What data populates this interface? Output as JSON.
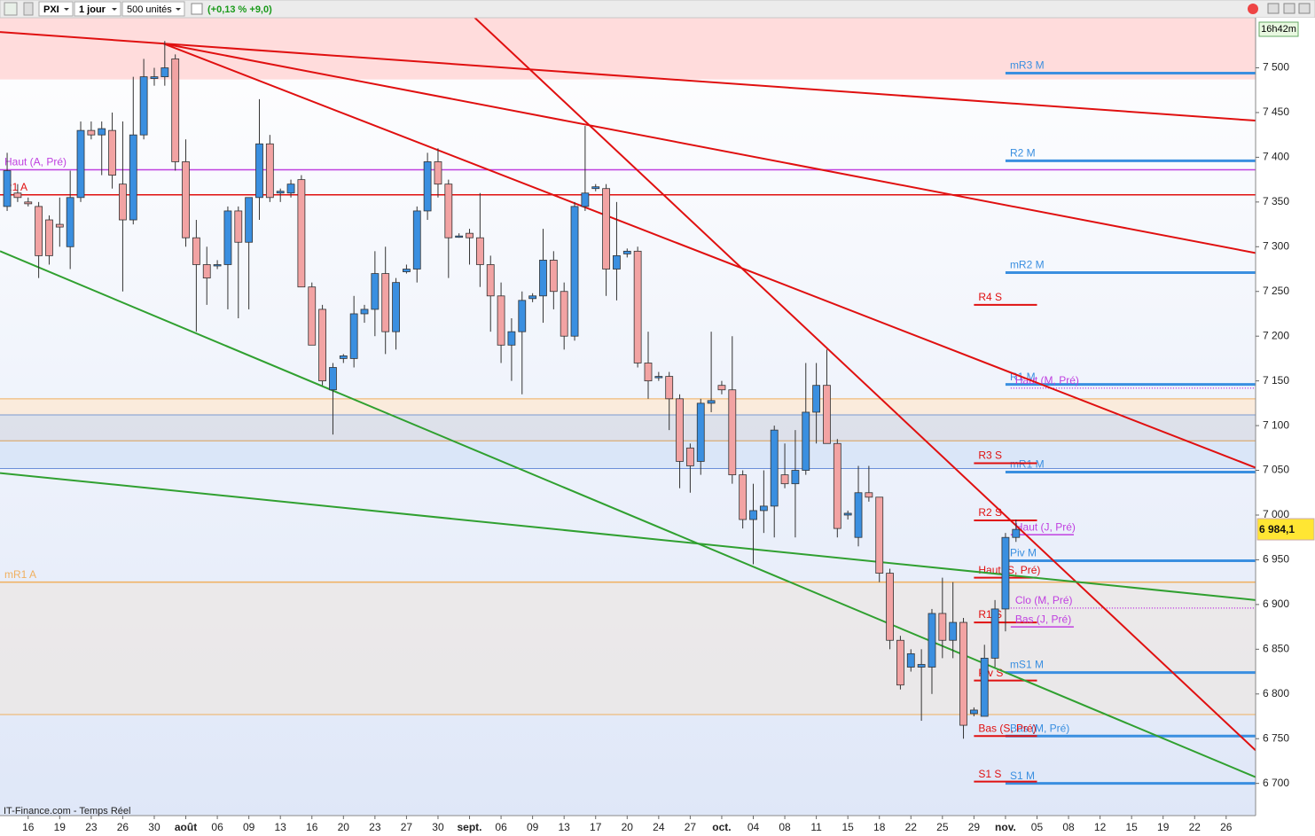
{
  "toolbar": {
    "symbol": "PXI",
    "period": "1 jour",
    "size": "500 unités",
    "change": "(+0,13 % +9,0)",
    "timer": "16h42m"
  },
  "footer": "IT-Finance.com - Temps Réel",
  "chart_data": {
    "type": "candlestick",
    "up_color": "#3a8fe0",
    "down_color": "#f2a3a3",
    "open": [
      7345,
      7360,
      7350,
      7345,
      7330,
      7325,
      7300,
      7355,
      7430,
      7425,
      7430,
      7370,
      7330,
      7425,
      7488,
      7490,
      7510,
      7395,
      7310,
      7280,
      7280,
      7280,
      7340,
      7305,
      7355,
      7415,
      7360,
      7360,
      7375,
      7255,
      7230,
      7140,
      7175,
      7175,
      7225,
      7230,
      7270,
      7205,
      7272,
      7275,
      7340,
      7395,
      7370,
      7312,
      7315,
      7310,
      7280,
      7245,
      7190,
      7205,
      7242,
      7245,
      7285,
      7250,
      7200,
      7345,
      7365,
      7365,
      7275,
      7292,
      7295,
      7170,
      7155,
      7155,
      7130,
      7075,
      7060,
      7125,
      7145,
      7140,
      7045,
      6995,
      7005,
      7010,
      7045,
      7035,
      7050,
      7115,
      7145,
      7080,
      7000,
      6975,
      7025,
      7020,
      6935,
      6860,
      6830,
      6830,
      6830,
      6890,
      6860,
      6880,
      6778,
      6775,
      6840,
      6895,
      6975
    ],
    "high": [
      7405,
      7370,
      7355,
      7350,
      7335,
      7355,
      7385,
      7440,
      7440,
      7440,
      7450,
      7440,
      7490,
      7510,
      7500,
      7530,
      7515,
      7420,
      7330,
      7300,
      7285,
      7345,
      7345,
      7355,
      7465,
      7425,
      7365,
      7375,
      7380,
      7260,
      7235,
      7170,
      7180,
      7245,
      7235,
      7295,
      7300,
      7265,
      7280,
      7345,
      7405,
      7410,
      7375,
      7315,
      7320,
      7360,
      7290,
      7260,
      7220,
      7250,
      7248,
      7320,
      7295,
      7260,
      7350,
      7435,
      7370,
      7370,
      7350,
      7298,
      7300,
      7205,
      7160,
      7160,
      7135,
      7080,
      7130,
      7205,
      7150,
      7200,
      7050,
      7035,
      7050,
      7100,
      7080,
      7095,
      7170,
      7170,
      7185,
      7085,
      7005,
      7055,
      7055,
      7020,
      6940,
      6865,
      6850,
      6850,
      6895,
      6930,
      6925,
      6885,
      6785,
      6855,
      6905,
      6980,
      6995
    ],
    "low": [
      7340,
      7350,
      7345,
      7265,
      7280,
      7300,
      7275,
      7350,
      7420,
      7380,
      7365,
      7250,
      7325,
      7420,
      7480,
      7480,
      7385,
      7300,
      7205,
      7235,
      7275,
      7230,
      7220,
      7230,
      7330,
      7350,
      7350,
      7355,
      7255,
      7195,
      7145,
      7090,
      7170,
      7165,
      7215,
      7200,
      7180,
      7185,
      7270,
      7260,
      7330,
      7355,
      7265,
      7310,
      7280,
      7255,
      7205,
      7170,
      7150,
      7135,
      7238,
      7215,
      7230,
      7185,
      7195,
      7340,
      7362,
      7245,
      7240,
      7288,
      7165,
      7130,
      7150,
      7095,
      7030,
      7025,
      7045,
      7115,
      7135,
      7035,
      6985,
      6945,
      6980,
      6975,
      7030,
      6975,
      7045,
      7080,
      7080,
      6975,
      6995,
      6965,
      7015,
      6925,
      6850,
      6805,
      6825,
      6770,
      6800,
      6840,
      6840,
      6750,
      6775,
      6775,
      6830,
      6870,
      6970
    ],
    "close": [
      7385,
      7355,
      7348,
      7290,
      7290,
      7322,
      7355,
      7430,
      7425,
      7432,
      7380,
      7330,
      7425,
      7490,
      7490,
      7500,
      7395,
      7310,
      7280,
      7265,
      7280,
      7340,
      7305,
      7355,
      7415,
      7355,
      7362,
      7370,
      7255,
      7190,
      7150,
      7165,
      7178,
      7225,
      7230,
      7270,
      7205,
      7260,
      7275,
      7340,
      7395,
      7370,
      7310,
      7312,
      7310,
      7280,
      7245,
      7190,
      7205,
      7240,
      7245,
      7285,
      7250,
      7200,
      7345,
      7360,
      7367,
      7275,
      7290,
      7295,
      7170,
      7150,
      7155,
      7130,
      7060,
      7055,
      7125,
      7128,
      7140,
      7045,
      6995,
      7005,
      7010,
      7095,
      7035,
      7050,
      7115,
      7145,
      7080,
      6985,
      7002,
      7025,
      7020,
      6935,
      6860,
      6810,
      6845,
      6833,
      6890,
      6860,
      6880,
      6765,
      6782,
      6840,
      6895,
      6975,
      6984
    ],
    "xlim": [
      -0.68,
      118.8
    ],
    "xticks": [
      {
        "value": 2,
        "label": "16"
      },
      {
        "value": 5,
        "label": "19"
      },
      {
        "value": 8,
        "label": "23"
      },
      {
        "value": 11,
        "label": "26"
      },
      {
        "value": 14,
        "label": "30"
      },
      {
        "value": 17,
        "label": "août"
      },
      {
        "value": 20,
        "label": "06"
      },
      {
        "value": 23,
        "label": "09"
      },
      {
        "value": 26,
        "label": "13"
      },
      {
        "value": 29,
        "label": "16"
      },
      {
        "value": 32,
        "label": "20"
      },
      {
        "value": 35,
        "label": "23"
      },
      {
        "value": 38,
        "label": "27"
      },
      {
        "value": 41,
        "label": "30"
      },
      {
        "value": 44,
        "label": "sept."
      },
      {
        "value": 47,
        "label": "06"
      },
      {
        "value": 50,
        "label": "09"
      },
      {
        "value": 53,
        "label": "13"
      },
      {
        "value": 56,
        "label": "17"
      },
      {
        "value": 59,
        "label": "20"
      },
      {
        "value": 62,
        "label": "24"
      },
      {
        "value": 65,
        "label": "27"
      },
      {
        "value": 68,
        "label": "oct."
      },
      {
        "value": 71,
        "label": "04"
      },
      {
        "value": 74,
        "label": "08"
      },
      {
        "value": 77,
        "label": "11"
      },
      {
        "value": 80,
        "label": "15"
      },
      {
        "value": 83,
        "label": "18"
      },
      {
        "value": 86,
        "label": "22"
      },
      {
        "value": 89,
        "label": "25"
      },
      {
        "value": 92,
        "label": "29"
      },
      {
        "value": 95,
        "label": "nov."
      },
      {
        "value": 98,
        "label": "05"
      },
      {
        "value": 101,
        "label": "08"
      },
      {
        "value": 104,
        "label": "12"
      },
      {
        "value": 107,
        "label": "15"
      },
      {
        "value": 110,
        "label": "19"
      },
      {
        "value": 113,
        "label": "22"
      },
      {
        "value": 116,
        "label": "26"
      }
    ],
    "ylim": [
      6664,
      7556
    ],
    "yticks": [
      {
        "value": 6700,
        "label": "6 700"
      },
      {
        "value": 6750,
        "label": "6 750"
      },
      {
        "value": 6800,
        "label": "6 800"
      },
      {
        "value": 6850,
        "label": "6 850"
      },
      {
        "value": 6900,
        "label": "6 900"
      },
      {
        "value": 6950,
        "label": "6 950"
      },
      {
        "value": 7000,
        "label": "7 000"
      },
      {
        "value": 7050,
        "label": "7 050"
      },
      {
        "value": 7100,
        "label": "7 100"
      },
      {
        "value": 7150,
        "label": "7 150"
      },
      {
        "value": 7200,
        "label": "7 200"
      },
      {
        "value": 7250,
        "label": "7 250"
      },
      {
        "value": 7300,
        "label": "7 300"
      },
      {
        "value": 7350,
        "label": "7 350"
      },
      {
        "value": 7400,
        "label": "7 400"
      },
      {
        "value": 7450,
        "label": "7 450"
      },
      {
        "value": 7500,
        "label": "7 500"
      }
    ],
    "last": {
      "value": 6984.1,
      "label": "6 984,1"
    },
    "zones": [
      {
        "from": 7487,
        "to": 7556,
        "color": "#ffd6d6"
      },
      {
        "from": 7112,
        "to": 7130,
        "color": "#fbe9d6"
      },
      {
        "from": 7083,
        "to": 7112,
        "color": "#d9dde6"
      },
      {
        "from": 7052,
        "to": 7083,
        "color": "#d6e4f7"
      },
      {
        "from": 6777,
        "to": 6925,
        "color": "#ebe8e6"
      }
    ],
    "levels": [
      {
        "label": "Haut (A, Pré)",
        "value": 7386,
        "color": "#c040e0",
        "span": "full"
      },
      {
        "label": "R1 A",
        "value": 7358,
        "color": "#e01010",
        "span": "full"
      },
      {
        "label": "mR1 A",
        "value": 6925,
        "color": "#f0b060",
        "span": "full"
      },
      {
        "label": "mR3 M",
        "value": 7494,
        "color": "#3a8fe0",
        "span": "month"
      },
      {
        "label": "R2 M",
        "value": 7396,
        "color": "#3a8fe0",
        "span": "month"
      },
      {
        "label": "mR2 M",
        "value": 7271,
        "color": "#3a8fe0",
        "span": "month"
      },
      {
        "label": "R1 M",
        "value": 7146,
        "color": "#3a8fe0",
        "span": "month"
      },
      {
        "label": "mR1 M",
        "value": 7048,
        "color": "#3a8fe0",
        "span": "month"
      },
      {
        "label": "Piv M",
        "value": 6949,
        "color": "#3a8fe0",
        "span": "month"
      },
      {
        "label": "mS1 M",
        "value": 6824,
        "color": "#3a8fe0",
        "span": "month"
      },
      {
        "label": "Bas (M, Pré)",
        "value": 6753,
        "color": "#3a8fe0",
        "span": "month"
      },
      {
        "label": "S1 M",
        "value": 6700,
        "color": "#3a8fe0",
        "span": "month"
      },
      {
        "label": "Haut (M, Pré)",
        "value": 7142,
        "color": "#c040e0",
        "span": "dotted"
      },
      {
        "label": "Clo (M, Pré)",
        "value": 6896,
        "color": "#c040e0",
        "span": "dotted"
      },
      {
        "label": "R4 S",
        "value": 7235,
        "color": "#e01010",
        "span": "week"
      },
      {
        "label": "R3 S",
        "value": 7058,
        "color": "#e01010",
        "span": "week"
      },
      {
        "label": "R2 S",
        "value": 6994,
        "color": "#e01010",
        "span": "week"
      },
      {
        "label": "Haut (S, Pré)",
        "value": 6930,
        "color": "#e01010",
        "span": "week"
      },
      {
        "label": "R1 S",
        "value": 6880,
        "color": "#e01010",
        "span": "week"
      },
      {
        "label": "Piv S",
        "value": 6815,
        "color": "#e01010",
        "span": "week"
      },
      {
        "label": "Bas (S, Pré)",
        "value": 6753,
        "color": "#e01010",
        "span": "week"
      },
      {
        "label": "S1 S",
        "value": 6702,
        "color": "#e01010",
        "span": "week"
      },
      {
        "label": "Haut (J, Pré)",
        "value": 6978,
        "color": "#c040e0",
        "span": "day"
      },
      {
        "label": "Bas (J, Pré)",
        "value": 6875,
        "color": "#c040e0",
        "span": "day"
      }
    ],
    "trendlines": [
      {
        "color": "#e01010",
        "points": [
          [
            -0.68,
            7540
          ],
          [
            118.8,
            7441
          ]
        ]
      },
      {
        "color": "#e01010",
        "points": [
          [
            14.9,
            7527
          ],
          [
            118.8,
            7293
          ]
        ]
      },
      {
        "color": "#e01010",
        "points": [
          [
            14.9,
            7527
          ],
          [
            118.8,
            7053
          ]
        ]
      },
      {
        "color": "#e01010",
        "points": [
          [
            44.5,
            7556
          ],
          [
            118.8,
            6737
          ]
        ]
      },
      {
        "color": "#30a030",
        "points": [
          [
            -0.68,
            7295
          ],
          [
            118.8,
            6707
          ]
        ]
      },
      {
        "color": "#30a030",
        "points": [
          [
            -0.68,
            7047
          ],
          [
            118.8,
            6905
          ]
        ]
      }
    ]
  }
}
